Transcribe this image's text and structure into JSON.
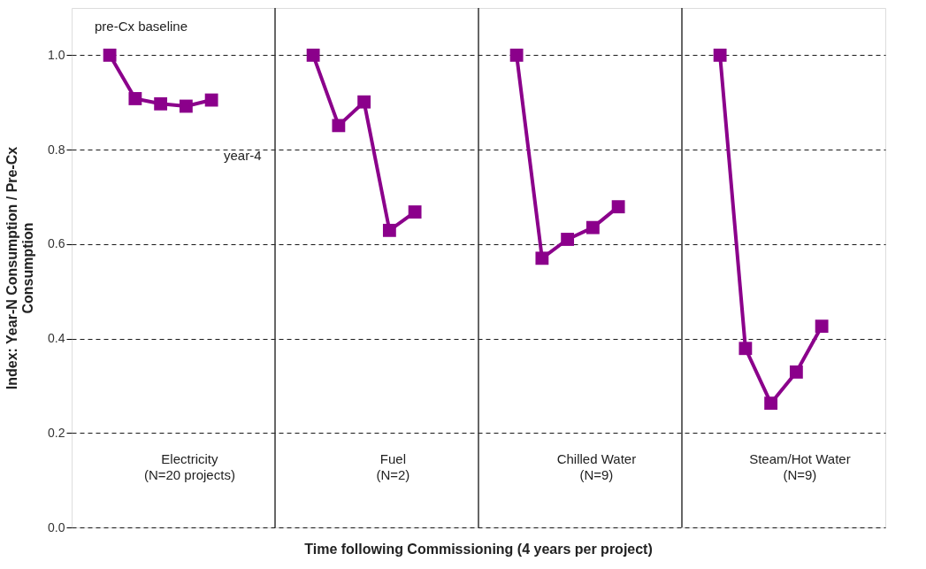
{
  "chart_data": {
    "type": "line",
    "categories": [
      null,
      null,
      null,
      null,
      null,
      null,
      null,
      null,
      null,
      null,
      null,
      null,
      null,
      null,
      null,
      null,
      null,
      null,
      null,
      null,
      null,
      null,
      null,
      null,
      null,
      null,
      null,
      null,
      null,
      null,
      null,
      null
    ],
    "series": [
      {
        "color": "#8b008b",
        "values": [
          null,
          1.0,
          0.908,
          0.897,
          0.892,
          0.905,
          null,
          null,
          null,
          null,
          null,
          null,
          null,
          null,
          null,
          null,
          null,
          null,
          null,
          null,
          null,
          null,
          null,
          null,
          null,
          null,
          null,
          null,
          null,
          null,
          null,
          null
        ]
      },
      {
        "color": "#8b008b",
        "values": [
          null,
          null,
          null,
          null,
          null,
          null,
          null,
          null,
          null,
          1.0,
          0.851,
          0.901,
          0.629,
          0.668,
          null,
          null,
          null,
          null,
          null,
          null,
          null,
          null,
          null,
          null,
          null,
          null,
          null,
          null,
          null,
          null,
          null,
          null
        ]
      },
      {
        "color": "#8b008b",
        "values": [
          null,
          null,
          null,
          null,
          null,
          null,
          null,
          null,
          null,
          null,
          null,
          null,
          null,
          null,
          null,
          null,
          null,
          1.0,
          0.57,
          0.61,
          0.635,
          0.679,
          null,
          null,
          null,
          null,
          null,
          null,
          null,
          null,
          null,
          null
        ]
      },
      {
        "color": "#8b008b",
        "values": [
          null,
          null,
          null,
          null,
          null,
          null,
          null,
          null,
          null,
          null,
          null,
          null,
          null,
          null,
          null,
          null,
          null,
          null,
          null,
          null,
          null,
          null,
          null,
          null,
          null,
          1.0,
          0.379,
          0.263,
          0.329,
          0.426,
          null,
          null
        ]
      }
    ],
    "marker": "square",
    "ylim": [
      0,
      1.1
    ],
    "yticks": [
      {
        "value": 0,
        "label": "0.0"
      },
      {
        "value": 0.2,
        "label": "0.2"
      },
      {
        "value": 0.4,
        "label": "0.4"
      },
      {
        "value": 0.6,
        "label": "0.6"
      },
      {
        "value": 0.8,
        "label": "0.8"
      },
      {
        "value": 1.0,
        "label": "1.0"
      }
    ],
    "grid": "y",
    "ylabel": "Index:   Year-N Consumption / Pre-Cx\nConsumption",
    "xlabel": "Time following Commissioning (4 years per project)",
    "annotations": [
      "pre-Cx baseline",
      "year-4",
      "Electricity\n(N=20 projects)",
      "Fuel\n(N=2)",
      "Chilled Water\n(N=9)",
      "Steam/Hot Water\n(N=9)"
    ]
  }
}
